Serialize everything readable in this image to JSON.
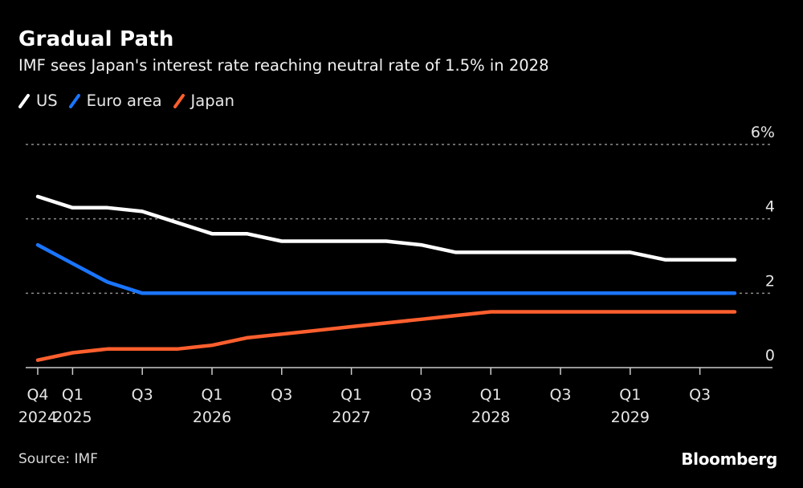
{
  "header": {
    "title": "Gradual Path",
    "subtitle": "IMF sees Japan's interest rate reaching neutral rate of 1.5% in 2028"
  },
  "legend": [
    {
      "label": "US",
      "color": "#ffffff"
    },
    {
      "label": "Euro area",
      "color": "#1a75ff"
    },
    {
      "label": "Japan",
      "color": "#ff5f2e"
    }
  ],
  "footer": {
    "source": "Source: IMF",
    "brand": "Bloomberg"
  },
  "chart_data": {
    "type": "line",
    "title": "Gradual Path",
    "subtitle": "IMF sees Japan's interest rate reaching neutral rate of 1.5% in 2028",
    "xlabel": "",
    "ylabel": "",
    "x": [
      "Q4 2024",
      "Q1 2025",
      "Q2 2025",
      "Q3 2025",
      "Q4 2025",
      "Q1 2026",
      "Q2 2026",
      "Q3 2026",
      "Q4 2026",
      "Q1 2027",
      "Q2 2027",
      "Q3 2027",
      "Q4 2027",
      "Q1 2028",
      "Q2 2028",
      "Q3 2028",
      "Q4 2028",
      "Q1 2029",
      "Q2 2029",
      "Q3 2029",
      "Q4 2029"
    ],
    "x_ticks": [
      {
        "index": 0,
        "line1": "Q4",
        "line2": "2024"
      },
      {
        "index": 1,
        "line1": "Q1",
        "line2": "2025"
      },
      {
        "index": 3,
        "line1": "Q3",
        "line2": ""
      },
      {
        "index": 5,
        "line1": "Q1",
        "line2": "2026"
      },
      {
        "index": 7,
        "line1": "Q3",
        "line2": ""
      },
      {
        "index": 9,
        "line1": "Q1",
        "line2": "2027"
      },
      {
        "index": 11,
        "line1": "Q3",
        "line2": ""
      },
      {
        "index": 13,
        "line1": "Q1",
        "line2": "2028"
      },
      {
        "index": 15,
        "line1": "Q3",
        "line2": ""
      },
      {
        "index": 17,
        "line1": "Q1",
        "line2": "2029"
      },
      {
        "index": 19,
        "line1": "Q3",
        "line2": ""
      }
    ],
    "y_ticks": [
      {
        "value": 0,
        "label": "0"
      },
      {
        "value": 2,
        "label": "2"
      },
      {
        "value": 4,
        "label": "4"
      },
      {
        "value": 6,
        "label": "6%"
      }
    ],
    "ylim": [
      0,
      6
    ],
    "grid": true,
    "y_axis_side": "right",
    "legend_position": "top-left",
    "series": [
      {
        "name": "US",
        "color": "#ffffff",
        "values": [
          4.6,
          4.3,
          4.3,
          4.2,
          3.9,
          3.6,
          3.6,
          3.4,
          3.4,
          3.4,
          3.4,
          3.3,
          3.1,
          3.1,
          3.1,
          3.1,
          3.1,
          3.1,
          2.9,
          2.9,
          2.9
        ]
      },
      {
        "name": "Euro area",
        "color": "#1a75ff",
        "values": [
          3.3,
          2.8,
          2.3,
          2.0,
          2.0,
          2.0,
          2.0,
          2.0,
          2.0,
          2.0,
          2.0,
          2.0,
          2.0,
          2.0,
          2.0,
          2.0,
          2.0,
          2.0,
          2.0,
          2.0,
          2.0
        ]
      },
      {
        "name": "Japan",
        "color": "#ff5f2e",
        "values": [
          0.2,
          0.4,
          0.5,
          0.5,
          0.5,
          0.6,
          0.8,
          0.9,
          1.0,
          1.1,
          1.2,
          1.3,
          1.4,
          1.5,
          1.5,
          1.5,
          1.5,
          1.5,
          1.5,
          1.5,
          1.5
        ]
      }
    ]
  }
}
